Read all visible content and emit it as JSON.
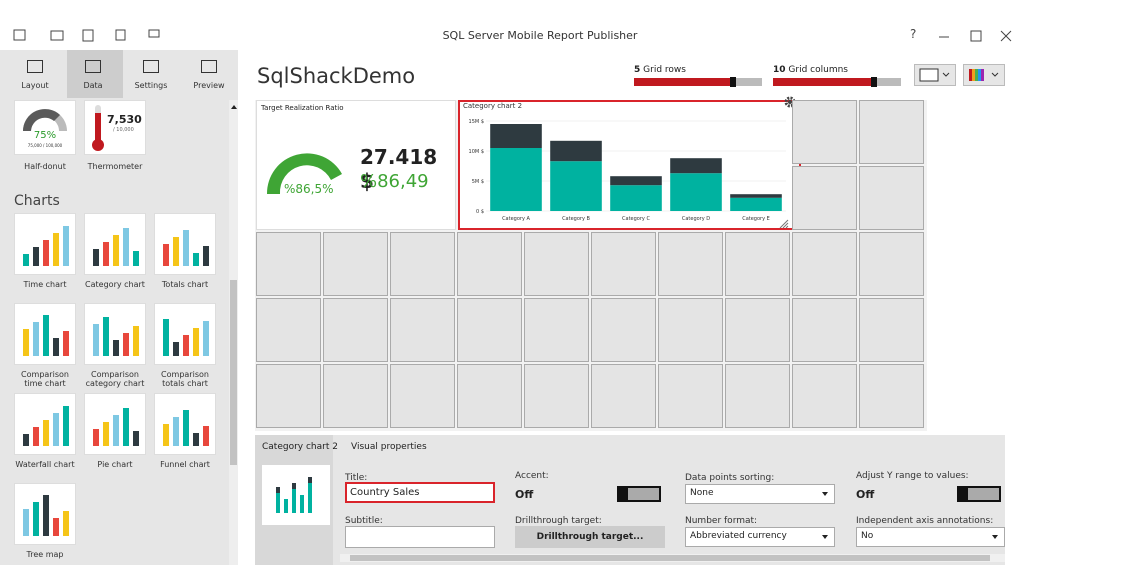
{
  "window": {
    "title": "SQL Server Mobile Report Publisher",
    "help": "?"
  },
  "nav": {
    "tabs": [
      "Layout",
      "Data",
      "Settings",
      "Preview"
    ]
  },
  "gallery": {
    "gauges": [
      {
        "label": "Half-donut",
        "value": "75%",
        "detail": "75,000 / 100,000"
      },
      {
        "label": "Thermometer",
        "value": "7,530",
        "detail": "/ 10,000"
      }
    ],
    "section": "Charts",
    "items": [
      "Time chart",
      "Category chart",
      "Totals chart",
      "Comparison time chart",
      "Comparison category chart",
      "Comparison totals chart",
      "Waterfall chart",
      "Pie chart",
      "Funnel chart",
      "Tree map"
    ]
  },
  "report": {
    "title": "SqlShackDemo",
    "grid_rows": {
      "count": "5",
      "label": "Grid rows"
    },
    "grid_columns": {
      "count": "10",
      "label": "Grid columns"
    }
  },
  "kpi": {
    "title": "Target Realization Ratio",
    "amount": "27.418 $",
    "ratio": "%86,49",
    "gauge_label": "%86,5%"
  },
  "chart_data": {
    "type": "bar",
    "title": "Category chart 2",
    "stacked": true,
    "categories": [
      "Category A",
      "Category B",
      "Category C",
      "Category D",
      "Category E"
    ],
    "series": [
      {
        "color": "#00b2a0",
        "values": [
          10.5,
          8.3,
          4.3,
          6.3,
          2.2
        ]
      },
      {
        "color": "#2e3a40",
        "values": [
          4,
          3.4,
          1.5,
          2.5,
          0.6
        ]
      }
    ],
    "ylim": [
      0,
      15
    ],
    "yticks": [
      {
        "value": 0,
        "label": "0 $"
      },
      {
        "value": 5,
        "label": "5M $"
      },
      {
        "value": 10,
        "label": "10M $"
      },
      {
        "value": 15,
        "label": "15M $"
      }
    ],
    "grid": true
  },
  "properties": {
    "tabs": [
      "Category chart 2",
      "Visual properties"
    ],
    "title": {
      "label": "Title:",
      "value": "Country Sales"
    },
    "subtitle": {
      "label": "Subtitle:"
    },
    "accent": {
      "label": "Accent:",
      "value": "Off"
    },
    "drillthrough": {
      "label": "Drillthrough target:",
      "value": "Drillthrough target..."
    },
    "sorting": {
      "label": "Data points sorting:",
      "value": "None"
    },
    "number_format": {
      "label": "Number format:",
      "value": "Abbreviated currency"
    },
    "adjust_y": {
      "label": "Adjust Y range to values:",
      "value": "Off"
    },
    "axis_annotations": {
      "label": "Independent axis annotations:",
      "value": "No"
    }
  }
}
